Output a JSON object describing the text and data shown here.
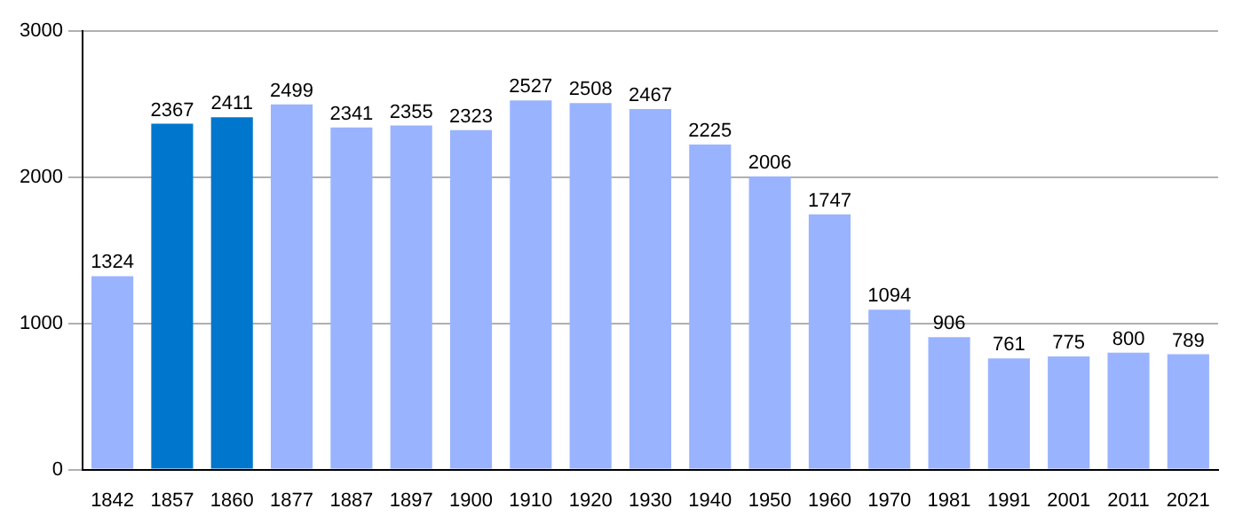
{
  "chart_data": {
    "type": "bar",
    "categories": [
      "1842",
      "1857",
      "1860",
      "1877",
      "1887",
      "1897",
      "1900",
      "1910",
      "1920",
      "1930",
      "1940",
      "1950",
      "1960",
      "1970",
      "1981",
      "1991",
      "2001",
      "2011",
      "2021"
    ],
    "values": [
      1324,
      2367,
      2411,
      2499,
      2341,
      2355,
      2323,
      2527,
      2508,
      2467,
      2225,
      2006,
      1747,
      1094,
      906,
      761,
      775,
      800,
      789
    ],
    "colors": [
      "#99b3ff",
      "#0077cc",
      "#0077cc",
      "#99b3ff",
      "#99b3ff",
      "#99b3ff",
      "#99b3ff",
      "#99b3ff",
      "#99b3ff",
      "#99b3ff",
      "#99b3ff",
      "#99b3ff",
      "#99b3ff",
      "#99b3ff",
      "#99b3ff",
      "#99b3ff",
      "#99b3ff",
      "#99b3ff",
      "#99b3ff"
    ],
    "ylim": [
      0,
      3000
    ],
    "yticks": [
      0,
      1000,
      2000,
      3000
    ],
    "grid": "y",
    "data_labels": true
  }
}
